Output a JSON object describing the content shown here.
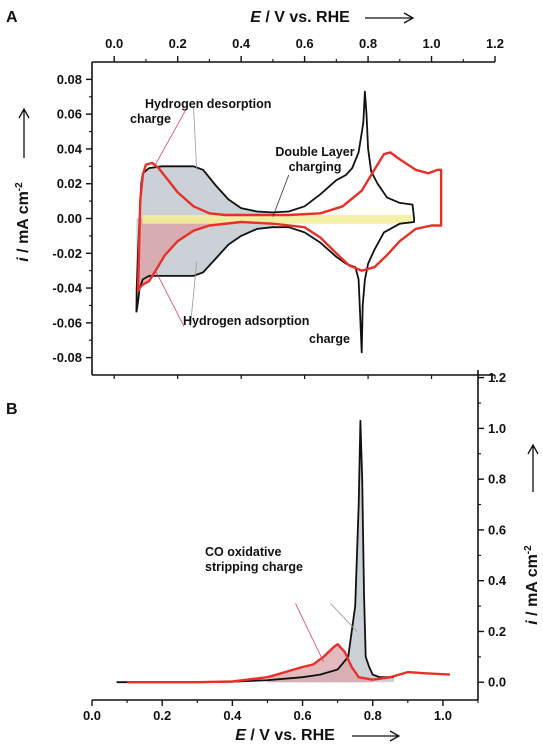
{
  "panels": [
    {
      "label": "A",
      "xlabel_var": "E",
      "xlabel_rest": " / V vs. RHE",
      "ylabel_var": "i",
      "ylabel_rest": " / mA cm",
      "ylabel_sup": "-2",
      "annotations": [
        "Hydrogen desorption",
        "charge",
        "Double Layer",
        "charging",
        "Hydrogen adsorption",
        "charge"
      ]
    },
    {
      "label": "B",
      "xlabel_var": "E",
      "xlabel_rest": " / V vs. RHE",
      "ylabel_var": "i",
      "ylabel_rest": " / mA cm",
      "ylabel_sup": "-2",
      "annotations": [
        "CO oxidative",
        "stripping charge"
      ]
    }
  ],
  "colors": {
    "black_trace": "#111111",
    "red_trace": "#e8302a",
    "shade_gray": "#b9c2c8",
    "shade_red": "#d9a4a8",
    "double_layer": "#f3ef9c"
  },
  "chart_data": [
    {
      "type": "line",
      "panel": "A",
      "xlabel": "E / V vs. RHE",
      "ylabel": "i / mA cm-2",
      "xlim": [
        -0.07,
        1.2
      ],
      "ylim": [
        -0.09,
        0.09
      ],
      "xticks": [
        "0.0",
        "0.2",
        "0.4",
        "0.6",
        "0.8",
        "1.0",
        "1.2"
      ],
      "yticks": [
        "-0.08",
        "-0.06",
        "-0.04",
        "-0.02",
        "0.00",
        "0.02",
        "0.04",
        "0.06",
        "0.08"
      ],
      "series": [
        {
          "color": "black",
          "anodic": [
            [
              0.07,
              -0.054
            ],
            [
              0.071,
              -0.04
            ],
            [
              0.075,
              -0.02
            ],
            [
              0.08,
              0.0
            ],
            [
              0.085,
              0.02
            ],
            [
              0.09,
              0.026
            ],
            [
              0.11,
              0.029
            ],
            [
              0.15,
              0.03
            ],
            [
              0.2,
              0.03
            ],
            [
              0.25,
              0.03
            ],
            [
              0.28,
              0.028
            ],
            [
              0.32,
              0.019
            ],
            [
              0.36,
              0.011
            ],
            [
              0.4,
              0.006
            ],
            [
              0.45,
              0.004
            ],
            [
              0.5,
              0.0035
            ],
            [
              0.55,
              0.004
            ],
            [
              0.6,
              0.007
            ],
            [
              0.65,
              0.014
            ],
            [
              0.7,
              0.022
            ],
            [
              0.73,
              0.025
            ],
            [
              0.75,
              0.029
            ],
            [
              0.77,
              0.038
            ],
            [
              0.785,
              0.055
            ],
            [
              0.79,
              0.073
            ],
            [
              0.795,
              0.06
            ],
            [
              0.8,
              0.04
            ],
            [
              0.81,
              0.027
            ],
            [
              0.83,
              0.02
            ],
            [
              0.86,
              0.012
            ],
            [
              0.9,
              0.009
            ],
            [
              0.94,
              0.008
            ],
            [
              0.945,
              0.0
            ],
            [
              0.945,
              -0.002
            ]
          ],
          "cathodic": [
            [
              0.945,
              -0.002
            ],
            [
              0.9,
              -0.003
            ],
            [
              0.85,
              -0.008
            ],
            [
              0.82,
              -0.018
            ],
            [
              0.8,
              -0.026
            ],
            [
              0.79,
              -0.035
            ],
            [
              0.783,
              -0.05
            ],
            [
              0.78,
              -0.077
            ],
            [
              0.775,
              -0.055
            ],
            [
              0.77,
              -0.035
            ],
            [
              0.76,
              -0.028
            ],
            [
              0.73,
              -0.026
            ],
            [
              0.7,
              -0.022
            ],
            [
              0.65,
              -0.014
            ],
            [
              0.6,
              -0.008
            ],
            [
              0.55,
              -0.005
            ],
            [
              0.5,
              -0.005
            ],
            [
              0.45,
              -0.006
            ],
            [
              0.4,
              -0.01
            ],
            [
              0.36,
              -0.015
            ],
            [
              0.32,
              -0.023
            ],
            [
              0.28,
              -0.031
            ],
            [
              0.25,
              -0.033
            ],
            [
              0.2,
              -0.033
            ],
            [
              0.15,
              -0.033
            ],
            [
              0.11,
              -0.033
            ],
            [
              0.09,
              -0.035
            ],
            [
              0.08,
              -0.04
            ],
            [
              0.075,
              -0.048
            ],
            [
              0.07,
              -0.054
            ]
          ]
        },
        {
          "color": "red",
          "anodic": [
            [
              0.075,
              -0.042
            ],
            [
              0.078,
              -0.02
            ],
            [
              0.082,
              0.01
            ],
            [
              0.09,
              0.025
            ],
            [
              0.1,
              0.031
            ],
            [
              0.12,
              0.032
            ],
            [
              0.14,
              0.029
            ],
            [
              0.17,
              0.022
            ],
            [
              0.2,
              0.015
            ],
            [
              0.25,
              0.007
            ],
            [
              0.3,
              0.003
            ],
            [
              0.35,
              0.002
            ],
            [
              0.45,
              0.002
            ],
            [
              0.55,
              0.002
            ],
            [
              0.65,
              0.003
            ],
            [
              0.72,
              0.007
            ],
            [
              0.78,
              0.016
            ],
            [
              0.82,
              0.028
            ],
            [
              0.85,
              0.037
            ],
            [
              0.87,
              0.038
            ],
            [
              0.9,
              0.034
            ],
            [
              0.95,
              0.028
            ],
            [
              0.99,
              0.026
            ],
            [
              1.02,
              0.028
            ],
            [
              1.03,
              0.028
            ],
            [
              1.03,
              0.0
            ],
            [
              1.03,
              -0.004
            ]
          ],
          "cathodic": [
            [
              1.03,
              -0.004
            ],
            [
              1.0,
              -0.004
            ],
            [
              0.95,
              -0.006
            ],
            [
              0.9,
              -0.013
            ],
            [
              0.86,
              -0.021
            ],
            [
              0.82,
              -0.028
            ],
            [
              0.78,
              -0.03
            ],
            [
              0.74,
              -0.027
            ],
            [
              0.7,
              -0.02
            ],
            [
              0.65,
              -0.011
            ],
            [
              0.6,
              -0.005
            ],
            [
              0.5,
              -0.003
            ],
            [
              0.4,
              -0.002
            ],
            [
              0.3,
              -0.004
            ],
            [
              0.25,
              -0.007
            ],
            [
              0.2,
              -0.013
            ],
            [
              0.16,
              -0.021
            ],
            [
              0.13,
              -0.03
            ],
            [
              0.11,
              -0.036
            ],
            [
              0.09,
              -0.038
            ],
            [
              0.08,
              -0.04
            ],
            [
              0.075,
              -0.042
            ]
          ]
        }
      ],
      "shaded_regions": [
        "hydrogen desorption (gray, upper)",
        "hydrogen adsorption (red/gray, lower)",
        "double layer band (yellow)"
      ],
      "grid": false
    },
    {
      "type": "line",
      "panel": "B",
      "xlabel": "E / V vs. RHE",
      "ylabel": "i / mA cm-2",
      "xlim": [
        0.0,
        1.1
      ],
      "ylim": [
        -0.07,
        1.23
      ],
      "xticks": [
        "0.0",
        "0.2",
        "0.4",
        "0.6",
        "0.8",
        "1.0"
      ],
      "yticks": [
        "0.0",
        "0.2",
        "0.4",
        "0.6",
        "0.8",
        "1.0",
        "1.2"
      ],
      "series": [
        {
          "color": "black",
          "points": [
            [
              0.07,
              0.0
            ],
            [
              0.3,
              0.0
            ],
            [
              0.4,
              0.002
            ],
            [
              0.5,
              0.008
            ],
            [
              0.6,
              0.02
            ],
            [
              0.65,
              0.03
            ],
            [
              0.7,
              0.05
            ],
            [
              0.73,
              0.1
            ],
            [
              0.75,
              0.3
            ],
            [
              0.76,
              0.7
            ],
            [
              0.765,
              1.03
            ],
            [
              0.77,
              0.8
            ],
            [
              0.775,
              0.35
            ],
            [
              0.78,
              0.1
            ],
            [
              0.79,
              0.06
            ],
            [
              0.8,
              0.03
            ],
            [
              0.82,
              0.02
            ],
            [
              0.86,
              0.02
            ]
          ]
        },
        {
          "color": "red",
          "points": [
            [
              0.1,
              0.0
            ],
            [
              0.3,
              0.0
            ],
            [
              0.4,
              0.003
            ],
            [
              0.5,
              0.02
            ],
            [
              0.55,
              0.04
            ],
            [
              0.6,
              0.06
            ],
            [
              0.63,
              0.07
            ],
            [
              0.66,
              0.1
            ],
            [
              0.69,
              0.14
            ],
            [
              0.7,
              0.15
            ],
            [
              0.72,
              0.12
            ],
            [
              0.74,
              0.06
            ],
            [
              0.76,
              0.02
            ],
            [
              0.8,
              0.01
            ],
            [
              0.85,
              0.02
            ],
            [
              0.9,
              0.04
            ],
            [
              0.95,
              0.035
            ],
            [
              1.02,
              0.03
            ]
          ]
        }
      ],
      "grid": false
    }
  ]
}
